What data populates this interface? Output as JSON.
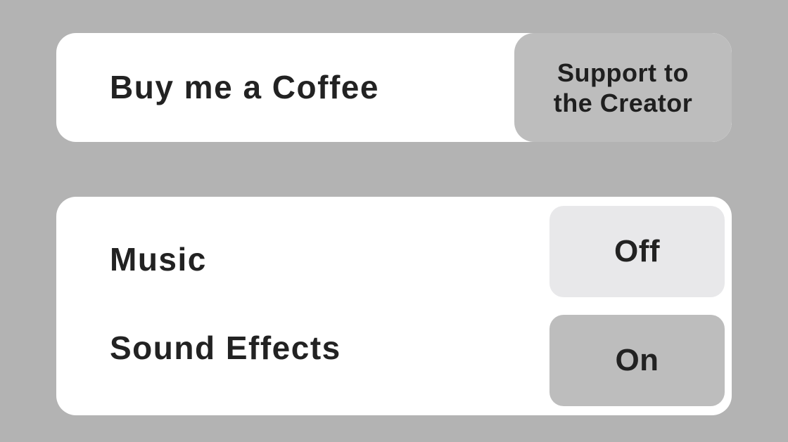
{
  "theme": {
    "background": "#b3b3b3",
    "panel": "#ffffff",
    "button_active": "#bdbdbd",
    "button_inactive": "#e8e8ea",
    "text": "#222222"
  },
  "coffee": {
    "label": "Buy me a Coffee",
    "button_label": "Support to the Creator"
  },
  "settings": {
    "music": {
      "label": "Music",
      "state": "Off"
    },
    "sound_effects": {
      "label": "Sound Effects",
      "state": "On"
    }
  }
}
